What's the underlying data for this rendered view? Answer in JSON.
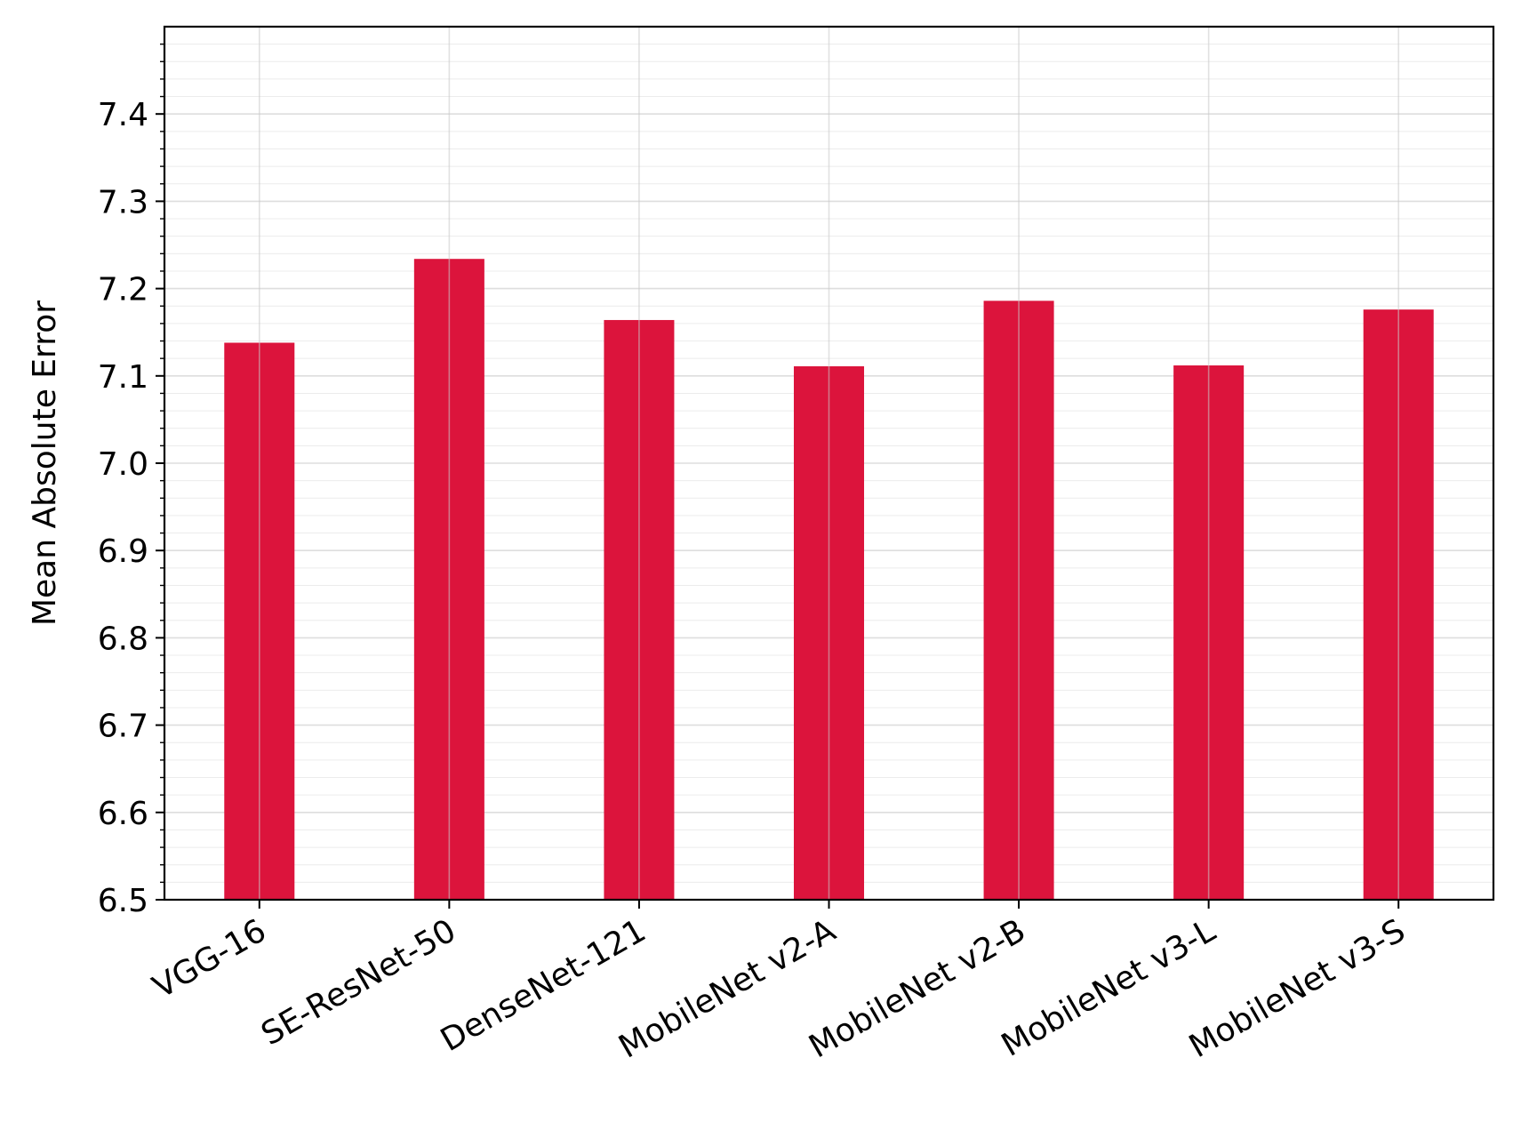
{
  "chart_data": {
    "type": "bar",
    "title": "",
    "xlabel": "",
    "ylabel": "Mean Absolute Error",
    "categories": [
      "VGG-16",
      "SE-ResNet-50",
      "DenseNet-121",
      "MobileNet v2-A",
      "MobileNet v2-B",
      "MobileNet v3-L",
      "MobileNet v3-S"
    ],
    "values": [
      7.138,
      7.234,
      7.164,
      7.111,
      7.186,
      7.112,
      7.176
    ],
    "ylim": [
      6.5,
      7.5
    ],
    "yticks": [
      "6.5",
      "6.6",
      "6.7",
      "6.8",
      "6.9",
      "7.0",
      "7.1",
      "7.2",
      "7.3",
      "7.4"
    ],
    "bar_color": "#dc143c",
    "grid": true,
    "minor_grid": true,
    "legend": "none"
  }
}
